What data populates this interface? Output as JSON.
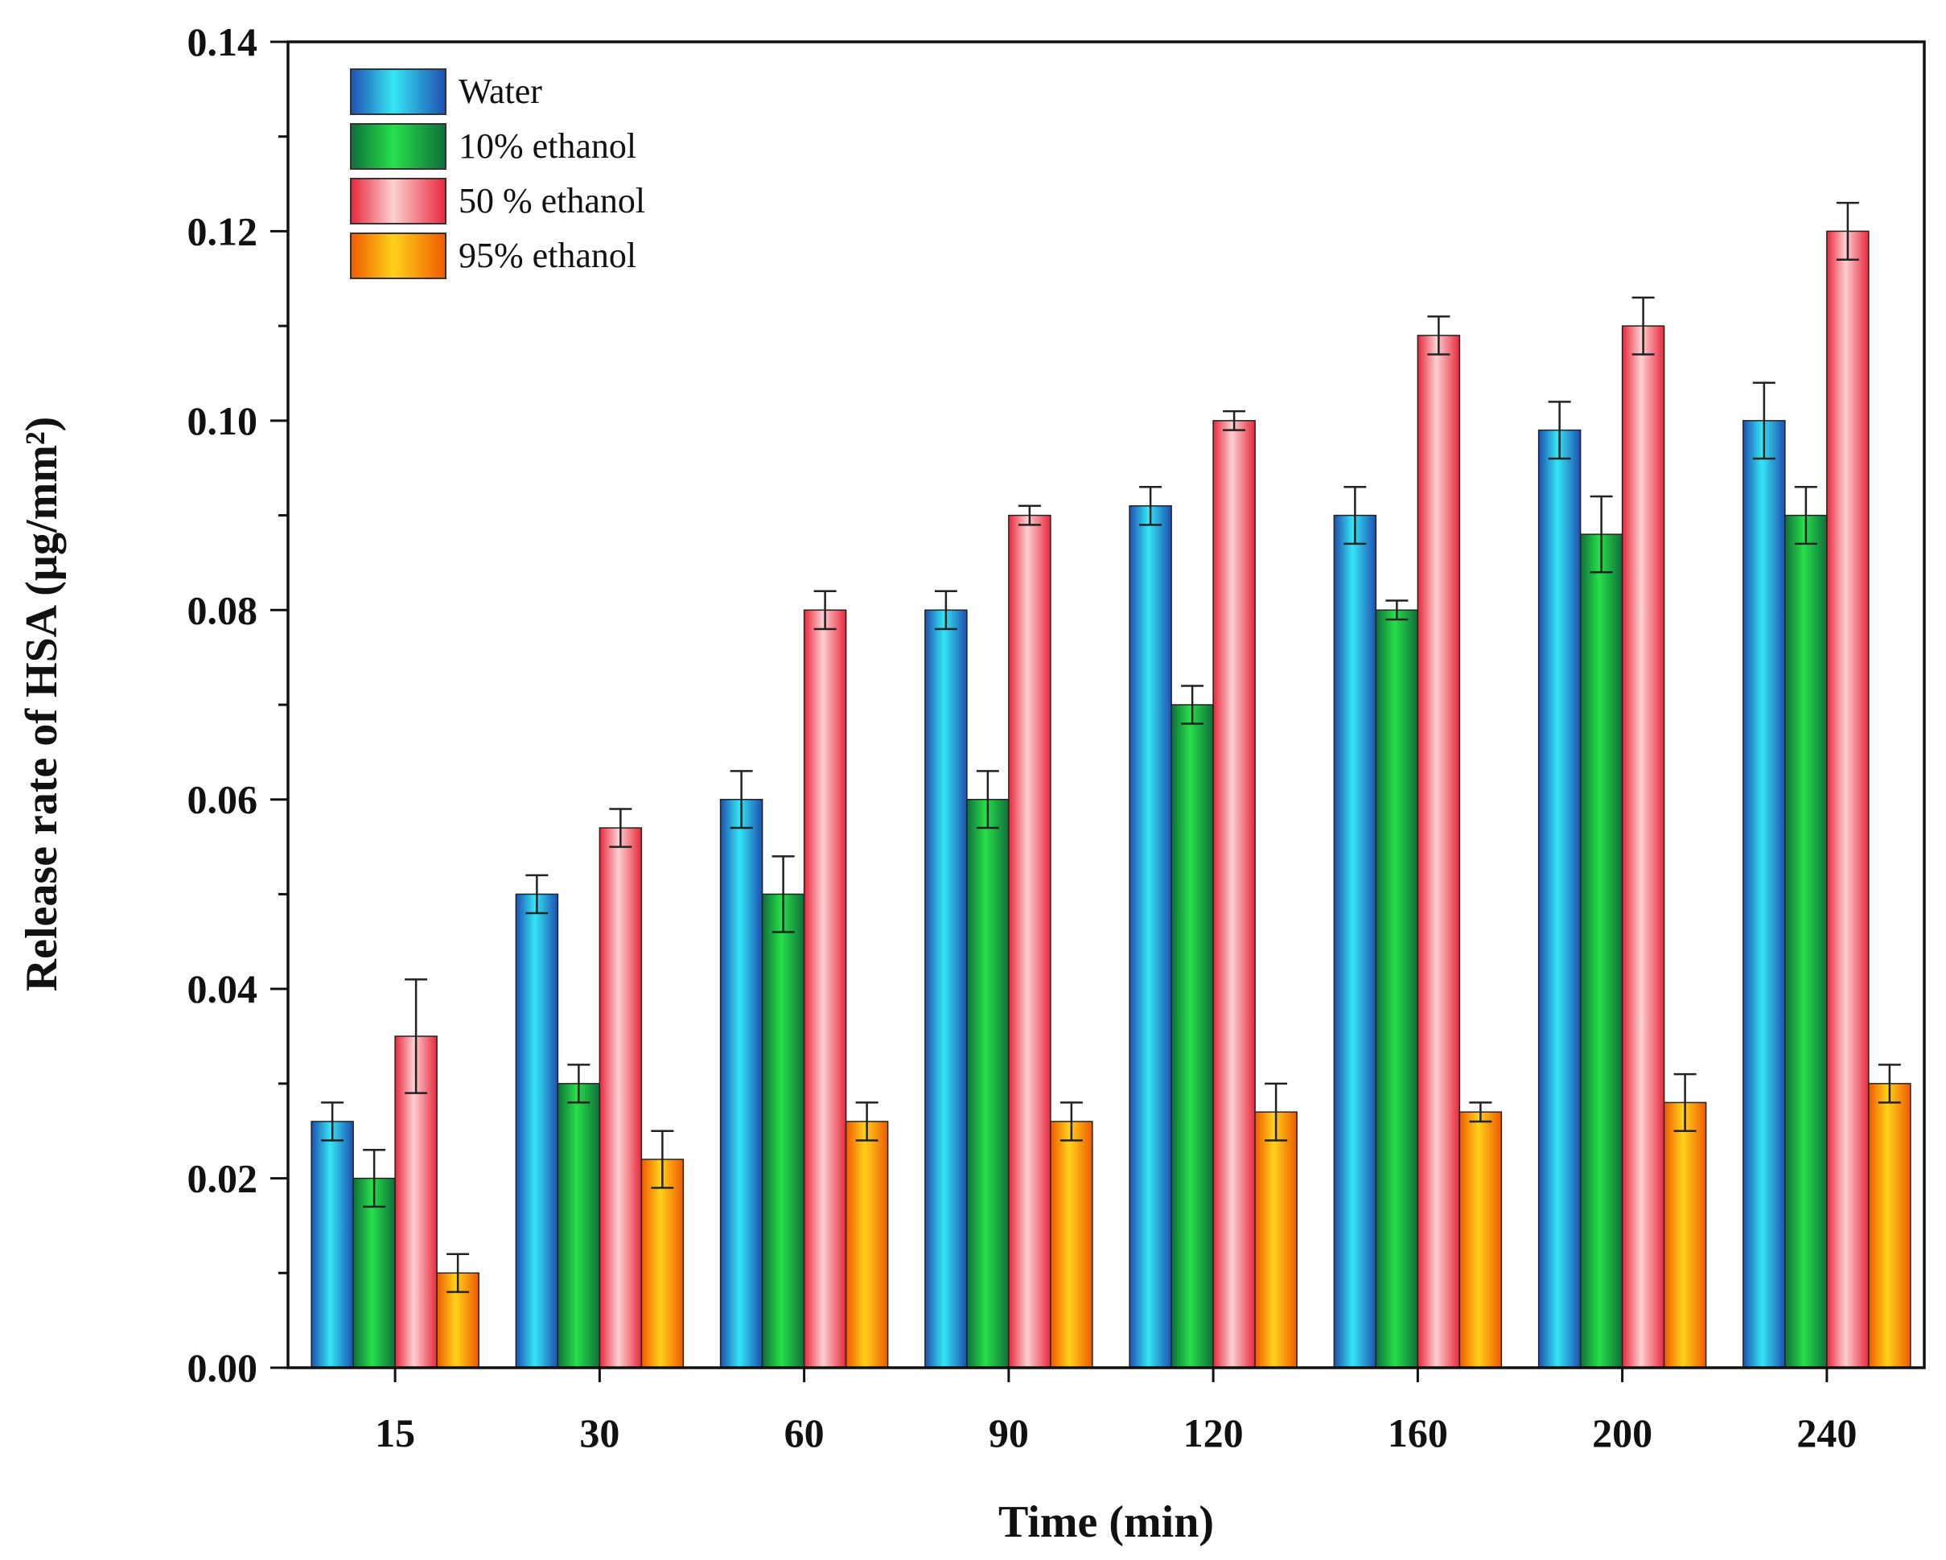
{
  "chart_data": {
    "type": "bar",
    "xlabel": "Time (min)",
    "ylabel": "Release rate of HSA (µg/mm²)",
    "ylim": [
      0,
      0.14
    ],
    "yticks": [
      "0.00",
      "0.02",
      "0.04",
      "0.06",
      "0.08",
      "0.10",
      "0.12",
      "0.14"
    ],
    "categories": [
      "15",
      "30",
      "60",
      "90",
      "120",
      "160",
      "200",
      "240"
    ],
    "legend_position": "top-left",
    "series": [
      {
        "name": "Water",
        "colors": [
          "#1e4fb0",
          "#35e6f5",
          "#1e4fb0"
        ],
        "values": [
          0.026,
          0.05,
          0.06,
          0.08,
          0.091,
          0.09,
          0.099,
          0.1
        ],
        "errors": [
          0.002,
          0.002,
          0.003,
          0.002,
          0.002,
          0.003,
          0.003,
          0.004
        ]
      },
      {
        "name": "10% ethanol",
        "colors": [
          "#0f6e3a",
          "#27e04a",
          "#0f6e3a"
        ],
        "values": [
          0.02,
          0.03,
          0.05,
          0.06,
          0.07,
          0.08,
          0.088,
          0.09
        ],
        "errors": [
          0.003,
          0.002,
          0.004,
          0.003,
          0.002,
          0.001,
          0.004,
          0.003
        ]
      },
      {
        "name": "50 % ethanol",
        "colors": [
          "#e8283a",
          "#fbd0d2",
          "#e8283a"
        ],
        "values": [
          0.035,
          0.057,
          0.08,
          0.09,
          0.1,
          0.109,
          0.11,
          0.12
        ],
        "errors": [
          0.006,
          0.002,
          0.002,
          0.001,
          0.001,
          0.002,
          0.003,
          0.003
        ]
      },
      {
        "name": "95% ethanol",
        "colors": [
          "#ef5a00",
          "#ffd21a",
          "#ef5a00"
        ],
        "values": [
          0.01,
          0.022,
          0.026,
          0.026,
          0.027,
          0.027,
          0.028,
          0.03
        ],
        "errors": [
          0.002,
          0.003,
          0.002,
          0.002,
          0.003,
          0.001,
          0.003,
          0.002
        ]
      }
    ]
  }
}
